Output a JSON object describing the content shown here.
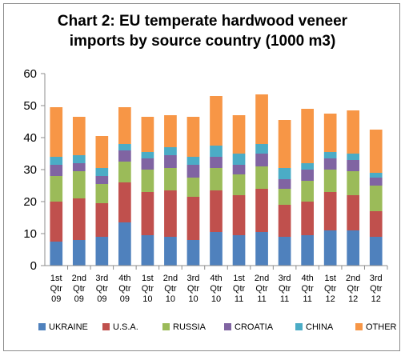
{
  "chart_data": {
    "type": "bar",
    "stacked": true,
    "title_line1": "Chart 2: EU temperate hardwood veneer",
    "title_line2": "imports by source country (1000 m3)",
    "xlabel": "",
    "ylabel": "",
    "ylim": [
      0,
      60
    ],
    "yticks": [
      0,
      10,
      20,
      30,
      40,
      50,
      60
    ],
    "grid": false,
    "legend_position": "bottom",
    "categories": [
      [
        "1st",
        "Qtr",
        "09"
      ],
      [
        "2nd",
        "Qtr",
        "09"
      ],
      [
        "3rd",
        "Qtr",
        "09"
      ],
      [
        "4th",
        "Qtr",
        "09"
      ],
      [
        "1st",
        "Qtr",
        "10"
      ],
      [
        "2nd",
        "Qtr",
        "10"
      ],
      [
        "3rd",
        "Qtr",
        "10"
      ],
      [
        "4th",
        "Qtr",
        "10"
      ],
      [
        "1st",
        "Qtr",
        "11"
      ],
      [
        "2nd",
        "Qtr",
        "11"
      ],
      [
        "3rd",
        "Qtr",
        "11"
      ],
      [
        "4th",
        "Qtr",
        "11"
      ],
      [
        "1st",
        "Qtr",
        "12"
      ],
      [
        "2nd",
        "Qtr",
        "12"
      ],
      [
        "3rd",
        "Qtr",
        "12"
      ]
    ],
    "series": [
      {
        "name": "UKRAINE",
        "color": "#4f81bd",
        "values": [
          7.5,
          8,
          9,
          13.5,
          9.5,
          9,
          8,
          10.5,
          9.5,
          10.5,
          9,
          9.5,
          11,
          11,
          9
        ]
      },
      {
        "name": "U.S.A.",
        "color": "#c0504d",
        "values": [
          12.5,
          13,
          10.5,
          12.5,
          13.5,
          14.5,
          13.5,
          13,
          12.5,
          13.5,
          10,
          10.5,
          12,
          11,
          8
        ]
      },
      {
        "name": "RUSSIA",
        "color": "#9bbb59",
        "values": [
          8,
          8.5,
          6,
          6.5,
          7,
          7,
          6,
          7,
          6.5,
          7,
          5,
          6.5,
          7,
          7.5,
          8
        ]
      },
      {
        "name": "CROATIA",
        "color": "#8064a2",
        "values": [
          3.5,
          2.5,
          2.5,
          3.5,
          3.5,
          4,
          4,
          3.5,
          3,
          4,
          3,
          3.5,
          3.5,
          3.5,
          2.5
        ]
      },
      {
        "name": "CHINA",
        "color": "#4bacc6",
        "values": [
          2.5,
          2.5,
          2.5,
          2,
          2,
          2.5,
          2.5,
          3.5,
          3.5,
          3,
          3.5,
          2,
          2,
          2,
          1.5
        ]
      },
      {
        "name": "OTHER",
        "color": "#f79646",
        "values": [
          15.5,
          12,
          10,
          11.5,
          11,
          10,
          12.5,
          15.5,
          12,
          15.5,
          15,
          17,
          12,
          13.5,
          13.5
        ]
      }
    ]
  }
}
